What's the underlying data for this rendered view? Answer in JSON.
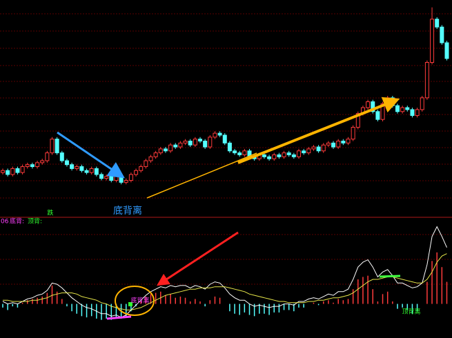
{
  "chart_data": [
    {
      "type": "candlestick",
      "ylim": [
        0,
        100
      ],
      "annotation": "底背离",
      "marker": "跌",
      "up_color": "#ff3b3b",
      "down_color": "#54ffff",
      "open": [
        14,
        15,
        13,
        16,
        14,
        17,
        18,
        17,
        19,
        20,
        24,
        31,
        24,
        20,
        18,
        16,
        17,
        15,
        14,
        16,
        13,
        11,
        12,
        10,
        12,
        9,
        10,
        13,
        15,
        17,
        20,
        22,
        24,
        26,
        25,
        28,
        27,
        29,
        30,
        28,
        31,
        30,
        27,
        32,
        34,
        33,
        29,
        25,
        24,
        23,
        25,
        22,
        21,
        23,
        22,
        21,
        23,
        22,
        24,
        23,
        22,
        25,
        24,
        26,
        27,
        25,
        28,
        29,
        27,
        30,
        29,
        31,
        37,
        44,
        47,
        50,
        45,
        41,
        49,
        52,
        48,
        45,
        47,
        46,
        43,
        46,
        52,
        70,
        92,
        88,
        80
      ],
      "high": [
        16,
        16,
        17,
        17,
        18,
        19,
        19,
        20,
        21,
        25,
        32,
        32,
        25,
        21,
        19,
        18,
        18,
        16,
        17,
        17,
        14,
        13,
        13,
        13,
        13,
        11,
        14,
        16,
        18,
        21,
        23,
        25,
        27,
        27,
        29,
        29,
        30,
        31,
        31,
        32,
        32,
        31,
        33,
        35,
        35,
        34,
        30,
        26,
        25,
        26,
        26,
        23,
        24,
        24,
        23,
        24,
        24,
        25,
        25,
        24,
        26,
        26,
        27,
        28,
        28,
        29,
        30,
        30,
        31,
        31,
        32,
        38,
        45,
        48,
        51,
        51,
        46,
        50,
        53,
        53,
        49,
        48,
        48,
        47,
        47,
        53,
        71,
        98,
        93,
        89,
        81
      ],
      "low": [
        13,
        12,
        12,
        13,
        13,
        16,
        16,
        16,
        18,
        19,
        23,
        23,
        19,
        17,
        15,
        15,
        14,
        13,
        13,
        12,
        10,
        10,
        9,
        9,
        8,
        8,
        9,
        12,
        14,
        16,
        19,
        21,
        23,
        24,
        24,
        26,
        26,
        28,
        27,
        27,
        29,
        26,
        26,
        31,
        32,
        28,
        24,
        23,
        22,
        22,
        21,
        20,
        20,
        21,
        20,
        20,
        21,
        21,
        22,
        21,
        21,
        23,
        23,
        25,
        24,
        24,
        27,
        26,
        26,
        28,
        28,
        30,
        36,
        43,
        46,
        44,
        40,
        40,
        48,
        47,
        44,
        44,
        45,
        42,
        42,
        45,
        51,
        69,
        87,
        79,
        71
      ],
      "close": [
        15,
        13,
        16,
        14,
        17,
        18,
        17,
        19,
        20,
        24,
        31,
        24,
        20,
        18,
        16,
        17,
        15,
        14,
        16,
        13,
        11,
        12,
        10,
        12,
        9,
        10,
        13,
        15,
        17,
        20,
        22,
        24,
        26,
        25,
        28,
        27,
        29,
        30,
        28,
        31,
        30,
        27,
        32,
        34,
        33,
        29,
        25,
        24,
        23,
        25,
        22,
        21,
        23,
        22,
        21,
        23,
        22,
        24,
        23,
        22,
        25,
        24,
        26,
        27,
        25,
        28,
        29,
        27,
        30,
        29,
        31,
        37,
        44,
        47,
        50,
        45,
        41,
        49,
        52,
        48,
        45,
        47,
        46,
        43,
        46,
        52,
        70,
        92,
        88,
        80,
        72
      ]
    },
    {
      "type": "macd",
      "ylim": [
        -2.5,
        6.5
      ],
      "label": "06",
      "bottom_label": "底背:",
      "top_label": "顶背:",
      "bottom_divergence": "底背离",
      "top_divergence": "顶背离",
      "pos_color": "#ff3b3b",
      "neg_color": "#54ffff",
      "dif_color": "#ffffff",
      "dea_color": "#e8e84a",
      "histogram": [
        -0.3,
        -0.5,
        -0.2,
        -0.3,
        0.1,
        0.3,
        0.4,
        0.5,
        0.6,
        0.9,
        1.5,
        1.0,
        0.4,
        -0.2,
        -0.6,
        -0.8,
        -1.0,
        -1.1,
        -1.0,
        -1.2,
        -1.3,
        -1.2,
        -1.3,
        -1.1,
        -1.2,
        -1.0,
        -0.6,
        -0.2,
        0.2,
        0.6,
        0.8,
        0.9,
        1.0,
        0.7,
        0.8,
        0.5,
        0.6,
        0.5,
        0.2,
        0.4,
        0.2,
        -0.2,
        0.3,
        0.6,
        0.5,
        0.0,
        -0.6,
        -0.8,
        -0.9,
        -0.7,
        -0.9,
        -1.0,
        -0.8,
        -0.8,
        -0.9,
        -0.7,
        -0.7,
        -0.5,
        -0.5,
        -0.6,
        -0.3,
        -0.3,
        0.0,
        0.1,
        -0.1,
        0.2,
        0.3,
        0.1,
        0.4,
        0.3,
        0.4,
        1.2,
        2.0,
        2.2,
        2.3,
        1.2,
        0.2,
        0.8,
        1.0,
        0.2,
        -0.4,
        -0.3,
        -0.5,
        -0.8,
        -0.6,
        0.0,
        1.8,
        3.5,
        4.2,
        3.0,
        1.8
      ],
      "dif": [
        0.2,
        0.0,
        0.1,
        0.0,
        0.2,
        0.4,
        0.5,
        0.7,
        0.8,
        1.1,
        1.7,
        1.6,
        1.3,
        0.9,
        0.5,
        0.2,
        -0.1,
        -0.3,
        -0.4,
        -0.6,
        -0.8,
        -0.8,
        -1.0,
        -0.9,
        -1.1,
        -0.9,
        -0.5,
        -0.1,
        0.3,
        0.7,
        1.0,
        1.2,
        1.4,
        1.3,
        1.5,
        1.4,
        1.5,
        1.5,
        1.3,
        1.5,
        1.4,
        1.2,
        1.6,
        1.8,
        1.7,
        1.3,
        0.8,
        0.5,
        0.3,
        0.3,
        0.0,
        -0.2,
        -0.1,
        -0.2,
        -0.3,
        -0.2,
        -0.2,
        0.0,
        0.0,
        -0.1,
        0.2,
        0.2,
        0.4,
        0.5,
        0.4,
        0.6,
        0.8,
        0.7,
        1.0,
        1.0,
        1.2,
        2.0,
        3.0,
        3.4,
        3.6,
        3.0,
        2.2,
        2.6,
        2.8,
        2.3,
        1.7,
        1.7,
        1.5,
        1.3,
        1.4,
        1.7,
        3.2,
        5.5,
        6.3,
        5.5,
        4.6
      ],
      "dea": [
        0.3,
        0.3,
        0.2,
        0.2,
        0.2,
        0.2,
        0.3,
        0.3,
        0.4,
        0.5,
        0.7,
        0.8,
        0.9,
        0.9,
        0.9,
        0.8,
        0.6,
        0.5,
        0.4,
        0.3,
        0.1,
        0.0,
        -0.2,
        -0.3,
        -0.4,
        -0.5,
        -0.5,
        -0.4,
        -0.3,
        -0.1,
        0.1,
        0.3,
        0.5,
        0.7,
        0.8,
        0.9,
        1.0,
        1.1,
        1.2,
        1.2,
        1.3,
        1.3,
        1.3,
        1.4,
        1.4,
        1.4,
        1.3,
        1.2,
        1.1,
        1.0,
        0.8,
        0.7,
        0.6,
        0.5,
        0.4,
        0.3,
        0.2,
        0.2,
        0.1,
        0.1,
        0.1,
        0.1,
        0.2,
        0.2,
        0.3,
        0.3,
        0.4,
        0.5,
        0.5,
        0.6,
        0.7,
        0.9,
        1.2,
        1.5,
        1.8,
        2.0,
        2.0,
        2.1,
        2.2,
        2.2,
        2.1,
        2.0,
        1.9,
        1.8,
        1.7,
        1.7,
        2.0,
        2.6,
        3.4,
        3.9,
        4.1
      ]
    }
  ]
}
